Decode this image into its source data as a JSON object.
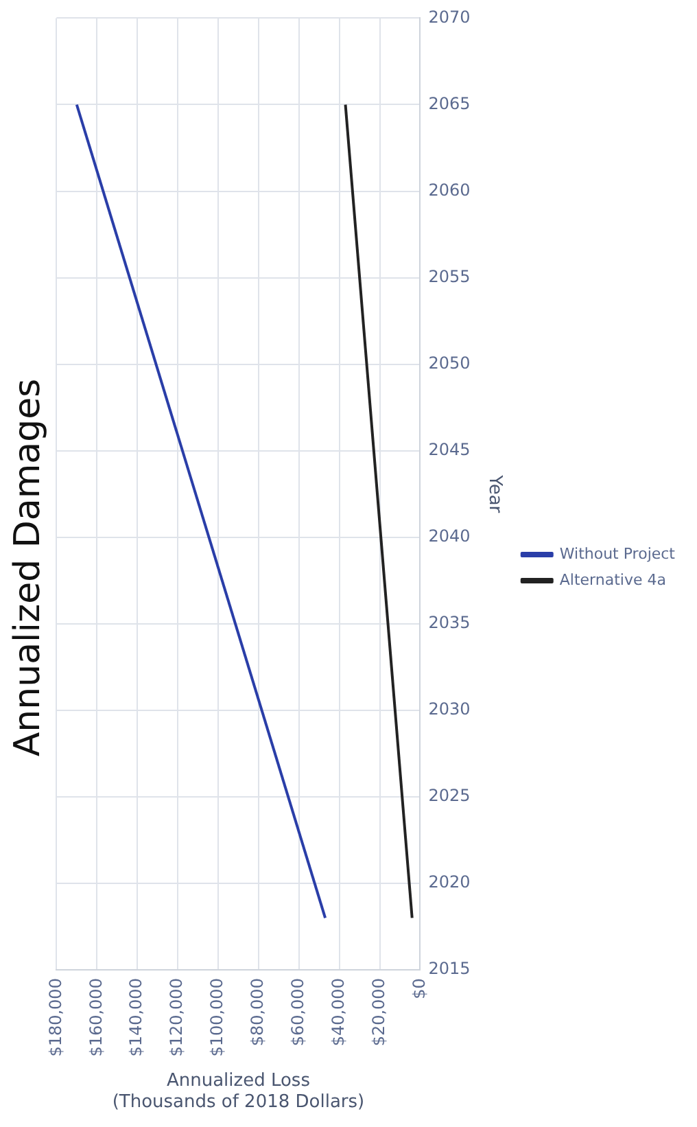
{
  "chart_data": {
    "type": "line",
    "title": "Annualized Damages",
    "xlabel": "Annualized Loss\n(Thousands of 2018 Dollars)",
    "ylabel": "Year",
    "xlim": [
      180000,
      0
    ],
    "xticks": [
      {
        "value": 0,
        "label": "$0"
      },
      {
        "value": 20000,
        "label": "$20,000"
      },
      {
        "value": 40000,
        "label": "$40,000"
      },
      {
        "value": 60000,
        "label": "$60,000"
      },
      {
        "value": 80000,
        "label": "$80,000"
      },
      {
        "value": 100000,
        "label": "$100,000"
      },
      {
        "value": 120000,
        "label": "$120,000"
      },
      {
        "value": 140000,
        "label": "$140,000"
      },
      {
        "value": 160000,
        "label": "$160,000"
      },
      {
        "value": 180000,
        "label": "$180,000"
      }
    ],
    "ylim": [
      2015,
      2070
    ],
    "yticks": [
      2015,
      2020,
      2025,
      2030,
      2035,
      2040,
      2045,
      2050,
      2055,
      2060,
      2065,
      2070
    ],
    "series": [
      {
        "name": "Without Project",
        "color": "#2a3ea8",
        "x": [
          47000,
          170000
        ],
        "values": [
          2018,
          2065
        ]
      },
      {
        "name": "Alternative 4a",
        "color": "#222222",
        "x": [
          4000,
          37000
        ],
        "values": [
          2018,
          2065
        ]
      }
    ],
    "grid": true,
    "legend": "right",
    "marker": "none",
    "line_style": "solid"
  }
}
